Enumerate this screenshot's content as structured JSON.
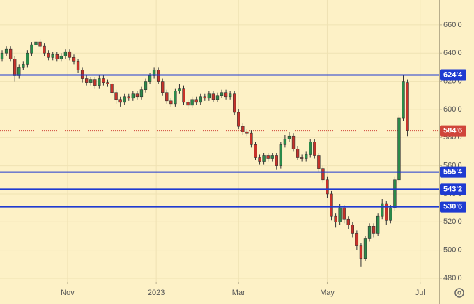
{
  "chart_data": {
    "type": "candlestick",
    "open": [
      636,
      640,
      643,
      636,
      624,
      630,
      632,
      640,
      646,
      648,
      645,
      640,
      637,
      639,
      636,
      638,
      641,
      637,
      634,
      628,
      622,
      619,
      621,
      617,
      622,
      619,
      618,
      612,
      607,
      605,
      609,
      608,
      611,
      609,
      614,
      620,
      624,
      628,
      620,
      612,
      606,
      604,
      613,
      615,
      605,
      603,
      607,
      605,
      609,
      608,
      611,
      607,
      610,
      612,
      609,
      611,
      598,
      588,
      584,
      583,
      575,
      566,
      563,
      567,
      565,
      567,
      560,
      575,
      579,
      581,
      572,
      566,
      565,
      568,
      577,
      567,
      558,
      550,
      540,
      524,
      520,
      530,
      522,
      518,
      512,
      503,
      494,
      508,
      517,
      512,
      524,
      533,
      521,
      530,
      550,
      594,
      619
    ],
    "high": [
      642,
      645,
      645,
      638,
      632,
      634,
      642,
      648,
      651,
      650,
      647,
      642,
      641,
      641,
      640,
      643,
      643,
      639,
      636,
      630,
      624,
      623,
      623,
      624,
      624,
      621,
      620,
      614,
      609,
      611,
      611,
      613,
      613,
      616,
      622,
      626,
      630,
      630,
      622,
      614,
      608,
      615,
      618,
      617,
      607,
      609,
      609,
      611,
      611,
      613,
      613,
      612,
      614,
      614,
      613,
      613,
      600,
      590,
      586,
      585,
      577,
      568,
      569,
      569,
      569,
      569,
      577,
      582,
      584,
      583,
      574,
      568,
      570,
      579,
      579,
      569,
      560,
      552,
      542,
      526,
      533,
      532,
      524,
      520,
      514,
      505,
      510,
      519,
      519,
      526,
      536,
      535,
      532,
      552,
      596,
      625,
      621
    ],
    "low": [
      634,
      638,
      634,
      620,
      622,
      628,
      630,
      638,
      644,
      643,
      638,
      635,
      635,
      634,
      634,
      636,
      635,
      632,
      626,
      619,
      617,
      617,
      615,
      615,
      617,
      616,
      610,
      604,
      602,
      603,
      606,
      606,
      607,
      607,
      612,
      618,
      622,
      618,
      610,
      604,
      602,
      602,
      611,
      603,
      600,
      601,
      603,
      603,
      606,
      606,
      605,
      605,
      608,
      607,
      607,
      596,
      586,
      582,
      581,
      573,
      564,
      561,
      561,
      563,
      563,
      557,
      558,
      573,
      577,
      570,
      564,
      563,
      563,
      566,
      565,
      556,
      548,
      537,
      521,
      516,
      518,
      519,
      515,
      509,
      500,
      488,
      492,
      506,
      509,
      510,
      522,
      518,
      519,
      528,
      548,
      592,
      581
    ],
    "close": [
      640,
      643,
      636,
      624,
      630,
      632,
      640,
      646,
      648,
      645,
      640,
      637,
      639,
      636,
      638,
      641,
      637,
      634,
      628,
      622,
      619,
      621,
      617,
      622,
      619,
      618,
      612,
      607,
      605,
      609,
      608,
      611,
      609,
      614,
      620,
      624,
      628,
      620,
      612,
      606,
      604,
      613,
      615,
      605,
      603,
      607,
      605,
      609,
      608,
      611,
      607,
      610,
      612,
      609,
      611,
      598,
      588,
      584,
      583,
      575,
      566,
      563,
      567,
      565,
      567,
      560,
      575,
      579,
      581,
      572,
      566,
      565,
      568,
      577,
      567,
      558,
      550,
      540,
      524,
      520,
      530,
      522,
      518,
      512,
      503,
      494,
      508,
      517,
      512,
      524,
      533,
      521,
      530,
      550,
      594,
      620,
      584.75
    ],
    "up_color": "#2a8a4a",
    "down_color": "#c8322a",
    "xlim": [
      -0.5,
      103.5
    ],
    "xticks": [
      {
        "value": 15.5,
        "label": "Nov"
      },
      {
        "value": 36.5,
        "label": "2023"
      },
      {
        "value": 56,
        "label": "Mar"
      },
      {
        "value": 77,
        "label": "May"
      },
      {
        "value": 99,
        "label": "Jul"
      }
    ],
    "ylim": [
      477.5,
      677.8
    ],
    "yticks": [
      {
        "value": 480,
        "label": "480'0"
      },
      {
        "value": 500,
        "label": "500'0"
      },
      {
        "value": 520,
        "label": "520'0"
      },
      {
        "value": 540,
        "label": "540'0"
      },
      {
        "value": 560,
        "label": "560'0"
      },
      {
        "value": 580,
        "label": "580'0"
      },
      {
        "value": 600,
        "label": "600'0"
      },
      {
        "value": 620,
        "label": "620'0"
      },
      {
        "value": 640,
        "label": "640'0"
      },
      {
        "value": 660,
        "label": "660'0"
      }
    ],
    "grid": true,
    "levels": [
      {
        "value": 624.5,
        "label": "624'4"
      },
      {
        "value": 555.5,
        "label": "555'4"
      },
      {
        "value": 543.25,
        "label": "543'2"
      },
      {
        "value": 530.75,
        "label": "530'6"
      }
    ],
    "level_color": "#1f3bd1",
    "last_price": {
      "value": 584.75,
      "label": "584'6"
    },
    "last_price_color": "#d0453a"
  }
}
